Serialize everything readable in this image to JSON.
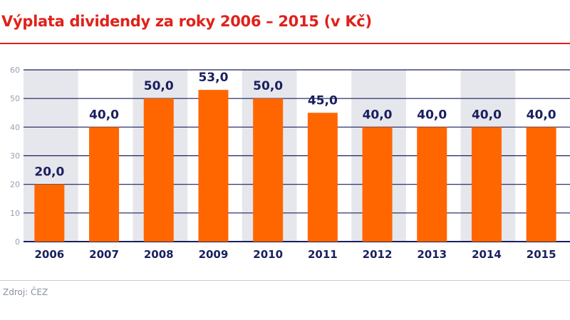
{
  "title": "Výplata dividendy za roky 2006 – 2015 (v Kč)",
  "source": "Zdroj: ČEZ",
  "colors": {
    "title": "#e0211a",
    "bar": "#ff6600",
    "label": "#1a1f5e",
    "band": "#e6e7ec",
    "grid": "#1a1f5e",
    "tick": "#9a9fb5"
  },
  "chart_data": {
    "type": "bar",
    "title": "Výplata dividendy za roky 2006 – 2015 (v Kč)",
    "categories": [
      "2006",
      "2007",
      "2008",
      "2009",
      "2010",
      "2011",
      "2012",
      "2013",
      "2014",
      "2015"
    ],
    "values": [
      20,
      40,
      50,
      53,
      50,
      45,
      40,
      40,
      40,
      40
    ],
    "data_labels": [
      "20,0",
      "40,0",
      "50,0",
      "53,0",
      "50,0",
      "45,0",
      "40,0",
      "40,0",
      "40,0",
      "40,0"
    ],
    "ylim": [
      0,
      60
    ],
    "yticks": [
      "0",
      "10",
      "20",
      "30",
      "40",
      "50",
      "60"
    ],
    "grid": true,
    "xlabel": "",
    "ylabel": ""
  }
}
